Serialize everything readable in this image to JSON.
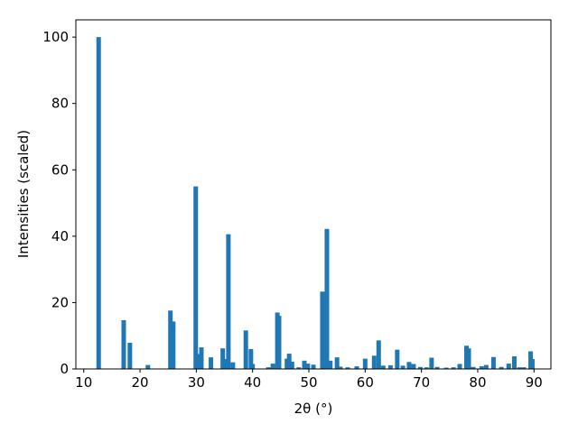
{
  "chart_data": {
    "type": "bar",
    "x_label": "2θ (°)",
    "y_label": "Intensities (scaled)",
    "color": "#1f77b4",
    "x": [
      12.65,
      17.1,
      18.2,
      21.4,
      25.4,
      25.9,
      29.9,
      30.4,
      30.9,
      32.6,
      34.7,
      35.2,
      35.7,
      36.5,
      38.8,
      39.7,
      40.0,
      42.8,
      43.6,
      44.4,
      44.7,
      46.1,
      46.5,
      47.0,
      48.2,
      49.2,
      49.8,
      50.8,
      52.4,
      53.2,
      53.8,
      55.0,
      55.6,
      56.9,
      58.5,
      60.0,
      61.6,
      62.4,
      63.2,
      64.5,
      65.7,
      66.7,
      67.8,
      68.6,
      69.8,
      70.9,
      71.8,
      72.8,
      74.4,
      75.7,
      76.8,
      78.0,
      78.4,
      79.2,
      80.7,
      81.5,
      82.8,
      84.2,
      85.5,
      86.5,
      87.4,
      88.2,
      89.4,
      89.7
    ],
    "values": [
      100,
      14.7,
      7.9,
      1.2,
      17.6,
      14.3,
      55,
      4.5,
      6.5,
      3.5,
      6.2,
      3,
      40.6,
      2,
      11.6,
      6,
      1.5,
      0.5,
      1.6,
      17,
      16,
      3.1,
      4.6,
      2.2,
      0.5,
      2.5,
      1.6,
      1.3,
      23.3,
      42.2,
      2.5,
      3.5,
      0.7,
      0.5,
      0.8,
      3.1,
      4,
      8.6,
      1,
      1.1,
      5.8,
      1,
      2.1,
      1.5,
      0.6,
      0.5,
      3.4,
      0.6,
      0.4,
      0.5,
      1.5,
      7,
      6.2,
      0.6,
      0.8,
      1.2,
      3.6,
      0.6,
      1.6,
      3.8,
      0.5,
      0.5,
      5.3,
      3
    ],
    "xlim": [
      8.6,
      93.0
    ],
    "ylim": [
      0,
      105.2
    ],
    "xticks": [
      10,
      20,
      30,
      40,
      50,
      60,
      70,
      80,
      90
    ],
    "yticks": [
      0,
      20,
      40,
      60,
      80,
      100
    ]
  }
}
